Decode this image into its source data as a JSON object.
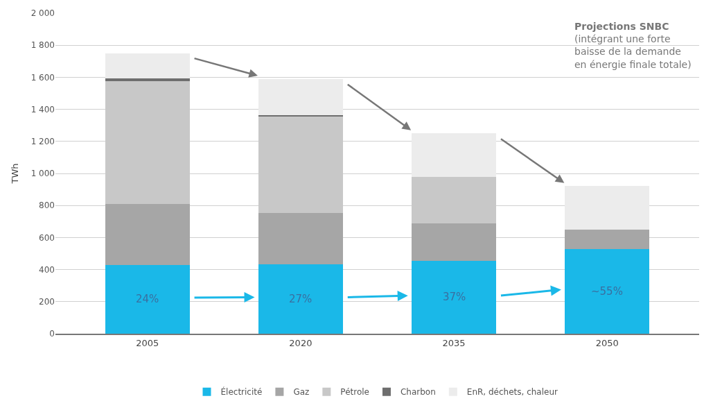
{
  "chart_data": {
    "type": "bar",
    "stacked": true,
    "ylabel": "TWh",
    "categories": [
      "2005",
      "2020",
      "2035",
      "2050"
    ],
    "series": [
      {
        "name": "Électricité",
        "color": "#1ab8e8",
        "values": [
          430,
          435,
          455,
          530
        ]
      },
      {
        "name": "Gaz",
        "color": "#a6a6a6",
        "values": [
          380,
          320,
          235,
          120
        ]
      },
      {
        "name": "Pétrole",
        "color": "#c8c8c8",
        "values": [
          765,
          600,
          290,
          0
        ]
      },
      {
        "name": "Charbon",
        "color": "#6e6e6e",
        "values": [
          20,
          10,
          0,
          0
        ]
      },
      {
        "name": "EnR, déchets, chaleur",
        "color": "#ececec",
        "values": [
          155,
          225,
          270,
          270
        ]
      }
    ],
    "ylim": [
      0,
      2000
    ],
    "yticks": [
      0,
      200,
      400,
      600,
      800,
      {
        "value": 1000,
        "label": "1 000"
      },
      {
        "value": 1200,
        "label": "1 200"
      },
      {
        "value": 1400,
        "label": "1 400"
      },
      {
        "value": 1600,
        "label": "1 600"
      },
      {
        "value": 1800,
        "label": "1 800"
      },
      {
        "value": 2000,
        "label": "2 000"
      }
    ],
    "grid": "y",
    "legend": "bottom",
    "annotations": [
      "24%",
      "27%",
      "37%",
      "~55%",
      "Projections SNBC\n(intégrant une forte\nbaisse de la demande\nen énergie finale totale)"
    ]
  }
}
